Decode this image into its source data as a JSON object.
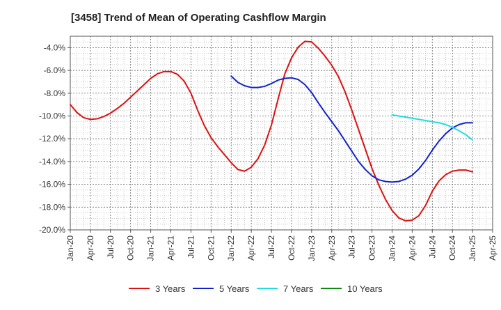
{
  "chart_data": {
    "type": "line",
    "title": "[3458]  Trend of Mean of Operating Cashflow Margin",
    "xlabel": "",
    "ylabel": "",
    "ylim": [
      -20.0,
      -3.0
    ],
    "y_ticks": [
      -20.0,
      -18.0,
      -16.0,
      -14.0,
      -12.0,
      -10.0,
      -8.0,
      -6.0,
      -4.0
    ],
    "y_tick_format": "%",
    "x_tick_labels": [
      "Jan-20",
      "Apr-20",
      "Jul-20",
      "Oct-20",
      "Jan-21",
      "Apr-21",
      "Jul-21",
      "Oct-21",
      "Jan-22",
      "Apr-22",
      "Jul-22",
      "Oct-22",
      "Jan-23",
      "Apr-23",
      "Jul-23",
      "Oct-23",
      "Jan-24",
      "Apr-24",
      "Jul-24",
      "Oct-24",
      "Jan-25",
      "Apr-25"
    ],
    "x_period": [
      "Jan-20",
      "Apr-25"
    ],
    "grid": true,
    "legend_position": "bottom",
    "series": [
      {
        "name": "3 Years",
        "color": "#dd1111",
        "x": [
          "Jan-20",
          "Feb-20",
          "Mar-20",
          "Apr-20",
          "May-20",
          "Jun-20",
          "Jul-20",
          "Aug-20",
          "Sep-20",
          "Oct-20",
          "Nov-20",
          "Dec-20",
          "Jan-21",
          "Feb-21",
          "Mar-21",
          "Apr-21",
          "May-21",
          "Jun-21",
          "Jul-21",
          "Aug-21",
          "Sep-21",
          "Oct-21",
          "Nov-21",
          "Dec-21",
          "Jan-22",
          "Feb-22",
          "Mar-22",
          "Apr-22",
          "May-22",
          "Jun-22",
          "Jul-22",
          "Aug-22",
          "Sep-22",
          "Oct-22",
          "Nov-22",
          "Dec-22",
          "Jan-23",
          "Feb-23",
          "Mar-23",
          "Apr-23",
          "May-23",
          "Jun-23",
          "Jul-23",
          "Aug-23",
          "Sep-23",
          "Oct-23",
          "Nov-23",
          "Dec-23",
          "Jan-24",
          "Feb-24",
          "Mar-24",
          "Apr-24",
          "May-24",
          "Jun-24",
          "Jul-24",
          "Aug-24",
          "Sep-24",
          "Oct-24",
          "Nov-24",
          "Dec-24",
          "Jan-25"
        ],
        "values": [
          -9.0,
          -9.7,
          -10.15,
          -10.3,
          -10.25,
          -10.05,
          -9.75,
          -9.35,
          -8.9,
          -8.35,
          -7.8,
          -7.25,
          -6.7,
          -6.3,
          -6.1,
          -6.1,
          -6.35,
          -6.95,
          -8.0,
          -9.5,
          -10.85,
          -11.9,
          -12.7,
          -13.4,
          -14.1,
          -14.7,
          -14.85,
          -14.5,
          -13.75,
          -12.55,
          -10.8,
          -8.5,
          -6.3,
          -4.9,
          -3.95,
          -3.45,
          -3.5,
          -4.05,
          -4.75,
          -5.55,
          -6.55,
          -7.9,
          -9.5,
          -11.2,
          -12.9,
          -14.6,
          -16.05,
          -17.3,
          -18.3,
          -18.95,
          -19.2,
          -19.15,
          -18.75,
          -17.85,
          -16.6,
          -15.7,
          -15.15,
          -14.85,
          -14.75,
          -14.75,
          -14.9
        ]
      },
      {
        "name": "5 Years",
        "color": "#1122cc",
        "x": [
          "Jan-22",
          "Feb-22",
          "Mar-22",
          "Apr-22",
          "May-22",
          "Jun-22",
          "Jul-22",
          "Aug-22",
          "Sep-22",
          "Oct-22",
          "Nov-22",
          "Dec-22",
          "Jan-23",
          "Feb-23",
          "Mar-23",
          "Apr-23",
          "May-23",
          "Jun-23",
          "Jul-23",
          "Aug-23",
          "Sep-23",
          "Oct-23",
          "Nov-23",
          "Dec-23",
          "Jan-24",
          "Feb-24",
          "Mar-24",
          "Apr-24",
          "May-24",
          "Jun-24",
          "Jul-24",
          "Aug-24",
          "Sep-24",
          "Oct-24",
          "Nov-24",
          "Dec-24",
          "Jan-25"
        ],
        "values": [
          -6.5,
          -7.05,
          -7.35,
          -7.5,
          -7.5,
          -7.4,
          -7.15,
          -6.85,
          -6.7,
          -6.65,
          -6.8,
          -7.25,
          -7.95,
          -8.85,
          -9.7,
          -10.5,
          -11.3,
          -12.2,
          -13.1,
          -14.0,
          -14.7,
          -15.25,
          -15.6,
          -15.75,
          -15.8,
          -15.75,
          -15.55,
          -15.2,
          -14.65,
          -13.9,
          -13.0,
          -12.2,
          -11.55,
          -11.05,
          -10.75,
          -10.6,
          -10.6
        ]
      },
      {
        "name": "7 Years",
        "color": "#22dddd",
        "x": [
          "Jan-24",
          "Feb-24",
          "Mar-24",
          "Apr-24",
          "May-24",
          "Jun-24",
          "Jul-24",
          "Aug-24",
          "Sep-24",
          "Oct-24",
          "Nov-24",
          "Dec-24",
          "Jan-25"
        ],
        "values": [
          -9.9,
          -10.0,
          -10.1,
          -10.2,
          -10.3,
          -10.4,
          -10.5,
          -10.6,
          -10.75,
          -11.0,
          -11.3,
          -11.65,
          -12.1
        ]
      },
      {
        "name": "10 Years",
        "color": "#118811",
        "x": [],
        "values": []
      }
    ]
  }
}
